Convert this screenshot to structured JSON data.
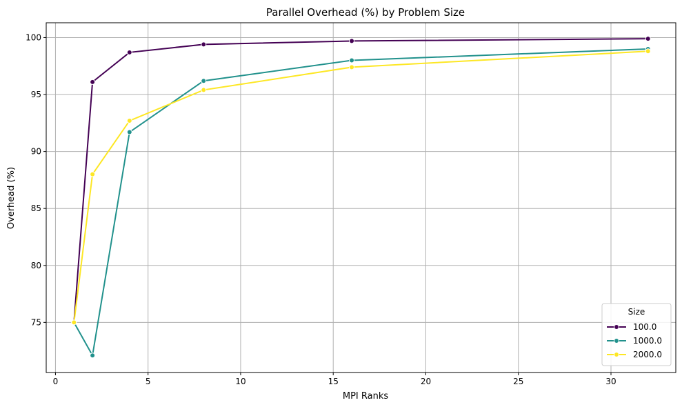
{
  "chart_data": {
    "type": "line",
    "title": "Parallel Overhead (%) by Problem Size",
    "xlabel": "MPI Ranks",
    "ylabel": "Overhead (%)",
    "xlim": [
      -0.5,
      33.5
    ],
    "ylim": [
      70.6,
      101.3
    ],
    "xticks": [
      0,
      5,
      10,
      15,
      20,
      25,
      30
    ],
    "yticks": [
      75,
      80,
      85,
      90,
      95,
      100
    ],
    "x": [
      1,
      2,
      4,
      8,
      16,
      32
    ],
    "grid": true,
    "legend": {
      "title": "Size",
      "placement": "lower-right"
    },
    "series": [
      {
        "name": "100.0",
        "color": "#440154",
        "values": [
          75.0,
          96.1,
          98.7,
          99.4,
          99.7,
          99.9
        ]
      },
      {
        "name": "1000.0",
        "color": "#21918c",
        "values": [
          75.0,
          72.1,
          91.7,
          96.2,
          98.0,
          99.0
        ]
      },
      {
        "name": "2000.0",
        "color": "#fde725",
        "values": [
          75.0,
          88.0,
          92.7,
          95.4,
          97.4,
          98.8
        ]
      }
    ]
  }
}
